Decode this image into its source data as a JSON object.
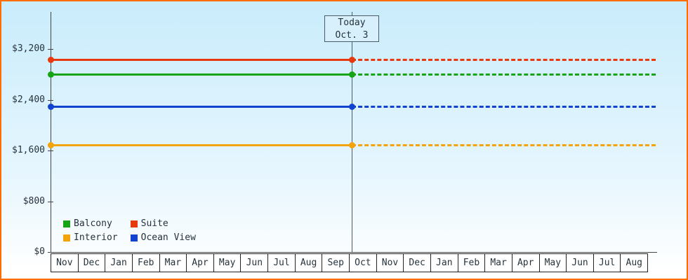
{
  "colors": {
    "outer_border": "#ff6d00",
    "bg_top": "#c9ecfb",
    "bg_mid": "#e6f6fe",
    "bg_bottom": "#ffffff",
    "axis": "#444444",
    "text": "#26333c",
    "today_line": "#4a5a66",
    "today_box_border": "#4a5a66",
    "today_box_bg": "#d7f0fb",
    "month_box_bg": "#ffffff",
    "month_box_border": "#222222"
  },
  "chart_data": {
    "type": "line",
    "title": "",
    "xlabel": "",
    "ylabel": "",
    "grid": false,
    "ylim": [
      0,
      3800
    ],
    "today": {
      "line1": "Today",
      "line2": "Oct. 3",
      "month_index": 11,
      "month_fraction": 0.1
    },
    "x_categories": [
      "Nov",
      "Dec",
      "Jan",
      "Feb",
      "Mar",
      "Apr",
      "May",
      "Jun",
      "Jul",
      "Aug",
      "Sep",
      "Oct",
      "Nov",
      "Dec",
      "Jan",
      "Feb",
      "Mar",
      "Apr",
      "May",
      "Jun",
      "Jul",
      "Aug"
    ],
    "y_ticks": [
      {
        "value": 0,
        "label": "$0"
      },
      {
        "value": 800,
        "label": "$800"
      },
      {
        "value": 1600,
        "label": "$1,600"
      },
      {
        "value": 2400,
        "label": "$2,400"
      },
      {
        "value": 3200,
        "label": "$3,200"
      }
    ],
    "series": [
      {
        "name": "Suite",
        "color": "#e8380d",
        "price": 3040,
        "style_before_today": "solid",
        "style_after_today": "dashed"
      },
      {
        "name": "Balcony",
        "color": "#16a416",
        "price": 2800,
        "style_before_today": "solid",
        "style_after_today": "dashed"
      },
      {
        "name": "Ocean View",
        "color": "#1243cf",
        "price": 2290,
        "style_before_today": "solid",
        "style_after_today": "dashed"
      },
      {
        "name": "Interior",
        "color": "#f3a40b",
        "price": 1690,
        "style_before_today": "solid",
        "style_after_today": "dashed"
      }
    ],
    "legend": {
      "position": "bottom-left",
      "order": [
        "Balcony",
        "Suite",
        "Interior",
        "Ocean View"
      ]
    }
  }
}
